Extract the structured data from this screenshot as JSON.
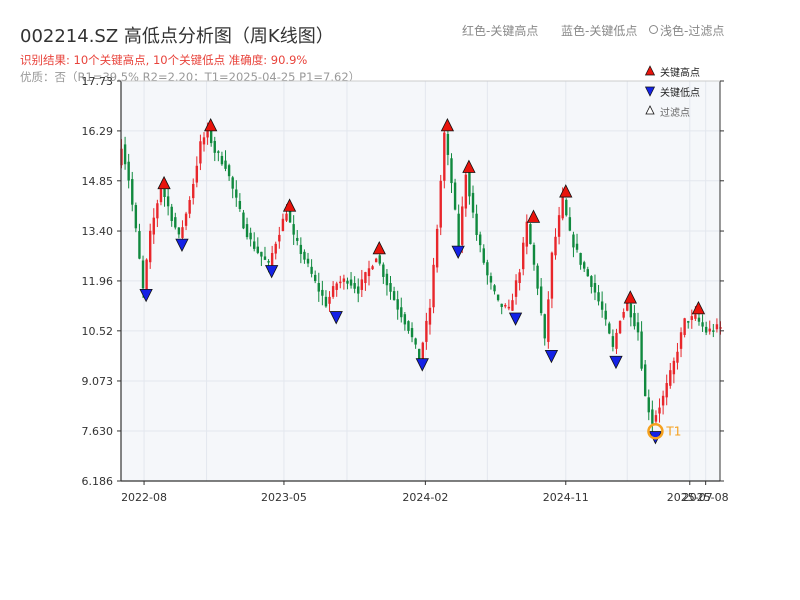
{
  "header": {
    "title": "002214.SZ 高低点分析图（周K线图）",
    "subtitle": "识别结果: 10个关键高点, 10个关键低点  准确度: 90.9%",
    "quality": "优质：否（R1=39.5%  R2=2.20；T1=2025-04-25 P1=7.62）"
  },
  "top_legend": {
    "red_label": "红色-关键高点",
    "blue_label": "蓝色-关键低点",
    "filtered_label": "浅色-过滤点"
  },
  "colors": {
    "up": "#e8262b",
    "down": "#10893e",
    "high_marker": "#e8140c",
    "low_marker": "#1422e6",
    "t1_marker": "#f5a11f",
    "plot_bg": "#f5f7fa",
    "grid": "#e3e7ee"
  },
  "chart_data": {
    "type": "candlestick",
    "title": "002214.SZ 高低点分析图（周K线图）",
    "x_range": [
      "2022-06-17",
      "2025-08-29"
    ],
    "ylim": [
      6.186,
      17.73
    ],
    "y_ticks": [
      "6.186",
      "7.630",
      "9.073",
      "10.52",
      "11.96",
      "13.40",
      "14.85",
      "16.29",
      "17.73"
    ],
    "x_ticks": [
      {
        "label": "2022-08",
        "date": "2022-08-01"
      },
      {
        "label": "2023-05",
        "date": "2023-05-01"
      },
      {
        "label": "2024-02",
        "date": "2024-02-01"
      },
      {
        "label": "2024-11",
        "date": "2024-11-01"
      },
      {
        "label": "2025-07",
        "date": "2025-07-01"
      },
      {
        "label": "2025-08",
        "date": "2025-08-01"
      }
    ],
    "price_path": [
      [
        "2022-06-17",
        15.3
      ],
      [
        "2022-06-24",
        15.9
      ],
      [
        "2022-07-08",
        14.9
      ],
      [
        "2022-07-22",
        13.4
      ],
      [
        "2022-08-05",
        11.7
      ],
      [
        "2022-08-19",
        13.3
      ],
      [
        "2022-09-09",
        14.7
      ],
      [
        "2022-09-23",
        14.1
      ],
      [
        "2022-10-14",
        13.2
      ],
      [
        "2022-10-28",
        13.9
      ],
      [
        "2022-11-11",
        14.8
      ],
      [
        "2022-11-25",
        15.9
      ],
      [
        "2022-12-09",
        16.3
      ],
      [
        "2022-12-23",
        15.7
      ],
      [
        "2023-01-13",
        15.3
      ],
      [
        "2023-01-27",
        14.6
      ],
      [
        "2023-02-17",
        13.6
      ],
      [
        "2023-03-03",
        13.1
      ],
      [
        "2023-03-17",
        12.8
      ],
      [
        "2023-04-07",
        12.4
      ],
      [
        "2023-04-21",
        13.1
      ],
      [
        "2023-05-12",
        14.0
      ],
      [
        "2023-05-26",
        13.2
      ],
      [
        "2023-06-16",
        12.6
      ],
      [
        "2023-07-07",
        11.9
      ],
      [
        "2023-07-28",
        11.3
      ],
      [
        "2023-08-18",
        11.9
      ],
      [
        "2023-09-08",
        12.0
      ],
      [
        "2023-09-29",
        11.7
      ],
      [
        "2023-10-20",
        12.3
      ],
      [
        "2023-11-03",
        12.7
      ],
      [
        "2023-11-24",
        11.9
      ],
      [
        "2023-12-15",
        11.2
      ],
      [
        "2024-01-05",
        10.6
      ],
      [
        "2024-01-26",
        9.7
      ],
      [
        "2024-02-16",
        11.2
      ],
      [
        "2024-03-01",
        13.5
      ],
      [
        "2024-03-15",
        16.2
      ],
      [
        "2024-03-29",
        14.8
      ],
      [
        "2024-04-12",
        13.0
      ],
      [
        "2024-04-26",
        15.1
      ],
      [
        "2024-05-17",
        13.3
      ],
      [
        "2024-06-07",
        12.1
      ],
      [
        "2024-06-28",
        11.3
      ],
      [
        "2024-07-19",
        11.1
      ],
      [
        "2024-08-09",
        12.3
      ],
      [
        "2024-08-23",
        13.6
      ],
      [
        "2024-09-13",
        11.8
      ],
      [
        "2024-09-27",
        10.2
      ],
      [
        "2024-10-11",
        12.7
      ],
      [
        "2024-11-01",
        14.3
      ],
      [
        "2024-11-15",
        13.3
      ],
      [
        "2024-12-06",
        12.5
      ],
      [
        "2024-12-27",
        11.9
      ],
      [
        "2025-01-17",
        11.1
      ],
      [
        "2025-02-07",
        10.0
      ],
      [
        "2025-02-21",
        10.9
      ],
      [
        "2025-03-07",
        11.3
      ],
      [
        "2025-03-28",
        10.5
      ],
      [
        "2025-04-11",
        8.6
      ],
      [
        "2025-04-25",
        7.9
      ],
      [
        "2025-05-16",
        8.6
      ],
      [
        "2025-06-06",
        9.6
      ],
      [
        "2025-06-27",
        10.8
      ],
      [
        "2025-07-18",
        10.9
      ],
      [
        "2025-08-08",
        10.5
      ],
      [
        "2025-08-29",
        10.6
      ]
    ],
    "key_highs": [
      {
        "date": "2022-09-09",
        "price": 14.62
      },
      {
        "date": "2022-12-09",
        "price": 16.29
      },
      {
        "date": "2023-05-12",
        "price": 13.97
      },
      {
        "date": "2023-11-03",
        "price": 12.74
      },
      {
        "date": "2024-03-15",
        "price": 16.29
      },
      {
        "date": "2024-04-26",
        "price": 15.09
      },
      {
        "date": "2024-08-30",
        "price": 13.65
      },
      {
        "date": "2024-11-01",
        "price": 14.38
      },
      {
        "date": "2025-03-07",
        "price": 11.32
      },
      {
        "date": "2025-07-18",
        "price": 11.01
      }
    ],
    "key_lows": [
      {
        "date": "2022-08-05",
        "price": 11.6
      },
      {
        "date": "2022-10-14",
        "price": 13.05
      },
      {
        "date": "2023-04-07",
        "price": 12.29
      },
      {
        "date": "2023-08-11",
        "price": 10.96
      },
      {
        "date": "2024-01-26",
        "price": 9.6
      },
      {
        "date": "2024-04-05",
        "price": 12.85
      },
      {
        "date": "2024-07-26",
        "price": 10.92
      },
      {
        "date": "2024-10-04",
        "price": 9.84
      },
      {
        "date": "2025-02-07",
        "price": 9.67
      },
      {
        "date": "2025-04-25",
        "price": 7.5
      }
    ],
    "t1": {
      "date": "2025-04-25",
      "price": 7.62,
      "label": "T1"
    },
    "legend": {
      "position": "top-right",
      "items": [
        "关键高点",
        "关键低点",
        "过滤点"
      ]
    },
    "grid": true
  }
}
